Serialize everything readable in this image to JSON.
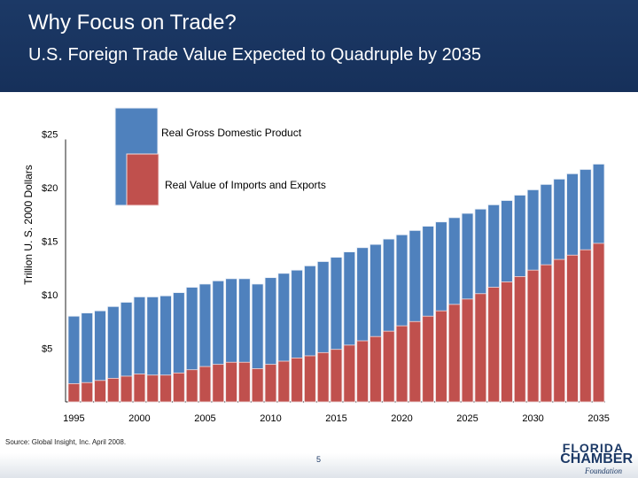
{
  "header": {
    "title": "Why Focus on Trade?",
    "subtitle": "U.S. Foreign Trade Value Expected to Quadruple by 2035"
  },
  "chart_data": {
    "type": "bar",
    "ylabel": "Trillion U. S. 2000 Dollars",
    "ylim": [
      0,
      25
    ],
    "yticks": [
      5,
      10,
      15,
      20,
      25
    ],
    "ytick_labels": [
      "$5",
      "$10",
      "$15",
      "$20",
      "$25"
    ],
    "xtick_labels": [
      "1995",
      "2000",
      "2005",
      "2010",
      "2015",
      "2020",
      "2025",
      "2030",
      "2035"
    ],
    "categories": [
      1995,
      1996,
      1997,
      1998,
      1999,
      2000,
      2001,
      2002,
      2003,
      2004,
      2005,
      2006,
      2007,
      2008,
      2009,
      2010,
      2011,
      2012,
      2013,
      2014,
      2015,
      2016,
      2017,
      2018,
      2019,
      2020,
      2021,
      2022,
      2023,
      2024,
      2025,
      2026,
      2027,
      2028,
      2029,
      2030,
      2031,
      2032,
      2033,
      2034,
      2035
    ],
    "series": [
      {
        "name": "Real Gross Domestic Product",
        "color": "#4f81bd",
        "values": [
          8.0,
          8.3,
          8.5,
          8.9,
          9.3,
          9.8,
          9.8,
          9.9,
          10.2,
          10.7,
          11.0,
          11.3,
          11.5,
          11.5,
          11.0,
          11.6,
          12.0,
          12.3,
          12.7,
          13.1,
          13.5,
          14.0,
          14.4,
          14.7,
          15.2,
          15.6,
          16.0,
          16.4,
          16.8,
          17.2,
          17.6,
          18.0,
          18.4,
          18.8,
          19.3,
          19.8,
          20.3,
          20.8,
          21.3,
          21.7,
          22.2
        ]
      },
      {
        "name": "Real Value of Imports and Exports",
        "color": "#c0504d",
        "values": [
          1.7,
          1.8,
          2.0,
          2.2,
          2.4,
          2.6,
          2.5,
          2.5,
          2.7,
          3.0,
          3.3,
          3.5,
          3.7,
          3.7,
          3.1,
          3.5,
          3.8,
          4.1,
          4.3,
          4.6,
          4.9,
          5.3,
          5.7,
          6.1,
          6.6,
          7.1,
          7.5,
          8.0,
          8.5,
          9.1,
          9.6,
          10.1,
          10.7,
          11.2,
          11.7,
          12.3,
          12.8,
          13.3,
          13.7,
          14.2,
          14.8
        ]
      }
    ]
  },
  "legend": {
    "gdp_label": "Real Gross Domestic Product",
    "trade_label": "Real Value of Imports and Exports"
  },
  "footer": {
    "source": "Source:  Global Insight, Inc. April 2008.",
    "page_number": "5",
    "logo_line1": "FLORIDA",
    "logo_line2": "CHAMBER",
    "logo_line3": "Foundation"
  }
}
